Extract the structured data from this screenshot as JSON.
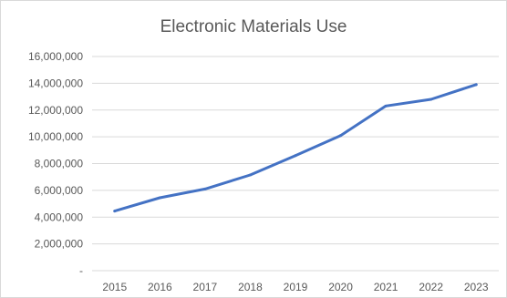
{
  "chart_data": {
    "type": "line",
    "title": "Electronic Materials Use",
    "xlabel": "",
    "ylabel": "",
    "categories": [
      "2015",
      "2016",
      "2017",
      "2018",
      "2019",
      "2020",
      "2021",
      "2022",
      "2023"
    ],
    "series": [
      {
        "values": [
          4450000,
          5450000,
          6100000,
          7150000,
          8600000,
          10100000,
          12300000,
          12800000,
          13900000
        ],
        "color": "#4472c4"
      }
    ],
    "ylim": [
      0,
      16000000
    ],
    "ytick_labels": [
      "-",
      "2,000,000",
      "4,000,000",
      "6,000,000",
      "8,000,000",
      "10,000,000",
      "12,000,000",
      "14,000,000",
      "16,000,000"
    ],
    "ytick_values": [
      0,
      2000000,
      4000000,
      6000000,
      8000000,
      10000000,
      12000000,
      14000000,
      16000000
    ],
    "grid": true,
    "legend": "none",
    "gridline_color": "#d9d9d9",
    "axis_label_color": "#595959"
  }
}
